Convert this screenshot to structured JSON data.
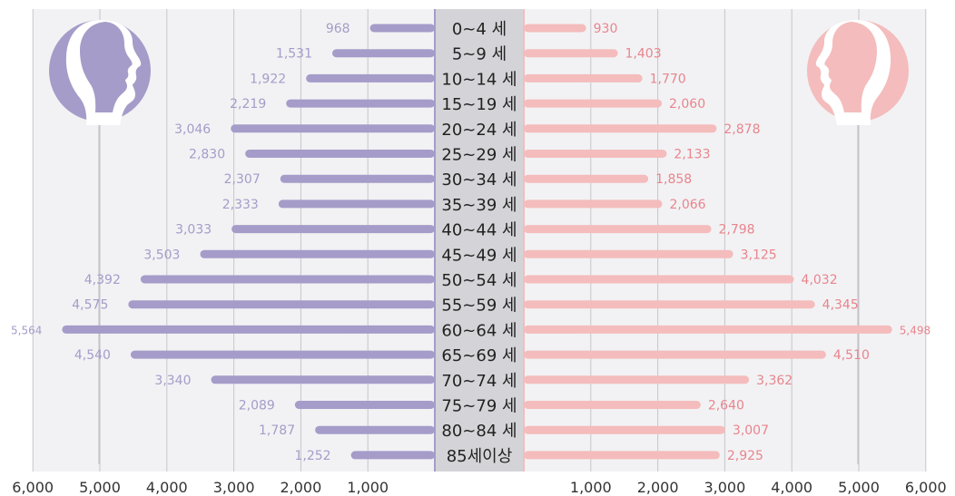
{
  "chart_data": {
    "type": "bar",
    "subtype": "population-pyramid",
    "categories": [
      "0~4 세",
      "5~9 세",
      "10~14 세",
      "15~19 세",
      "20~24 세",
      "25~29 세",
      "30~34 세",
      "35~39 세",
      "40~44 세",
      "45~49 세",
      "50~54 세",
      "55~59 세",
      "60~64 세",
      "65~69 세",
      "70~74 세",
      "75~79 세",
      "80~84 세",
      "85세이상"
    ],
    "series": [
      {
        "values": [
          968,
          1531,
          1922,
          2219,
          3046,
          2830,
          2307,
          2333,
          3033,
          3503,
          4392,
          4575,
          5564,
          4540,
          3340,
          2089,
          1787,
          1252
        ],
        "labels": [
          "968",
          "1,531",
          "1,922",
          "2,219",
          "3,046",
          "2,830",
          "2,307",
          "2,333",
          "3,033",
          "3,503",
          "4,392",
          "4,575",
          "5,564",
          "4,540",
          "3,340",
          "2,089",
          "1,787",
          "1,252"
        ],
        "color": "#a59cc9"
      },
      {
        "values": [
          930,
          1403,
          1770,
          2060,
          2878,
          2133,
          1858,
          2066,
          2798,
          3125,
          4032,
          4345,
          5498,
          4510,
          3362,
          2640,
          3007,
          2925
        ],
        "labels": [
          "930",
          "1,403",
          "1,770",
          "2,060",
          "2,878",
          "2,133",
          "1,858",
          "2,066",
          "2,798",
          "3,125",
          "4,032",
          "4,345",
          "5,498",
          "4,510",
          "3,362",
          "2,640",
          "3,007",
          "2,925"
        ],
        "color": "#f4bcbc"
      }
    ],
    "xlim": [
      0,
      6000
    ],
    "left_ticks": [
      "6,000",
      "5,000",
      "4,000",
      "3,000",
      "2,000",
      "1,000"
    ],
    "right_ticks": [
      "1,000",
      "2,000",
      "3,000",
      "4,000",
      "5,000",
      "6,000"
    ],
    "grid": true,
    "label_colors": {
      "left": "#a59cc9",
      "right": "#e8858d"
    },
    "axis_label_color": "#333333",
    "center_band_color": "#d4d4d8",
    "plot_background": "#f2f2f4",
    "icons": {
      "left": "male-head-silhouette-icon",
      "right": "female-head-silhouette-icon"
    }
  }
}
